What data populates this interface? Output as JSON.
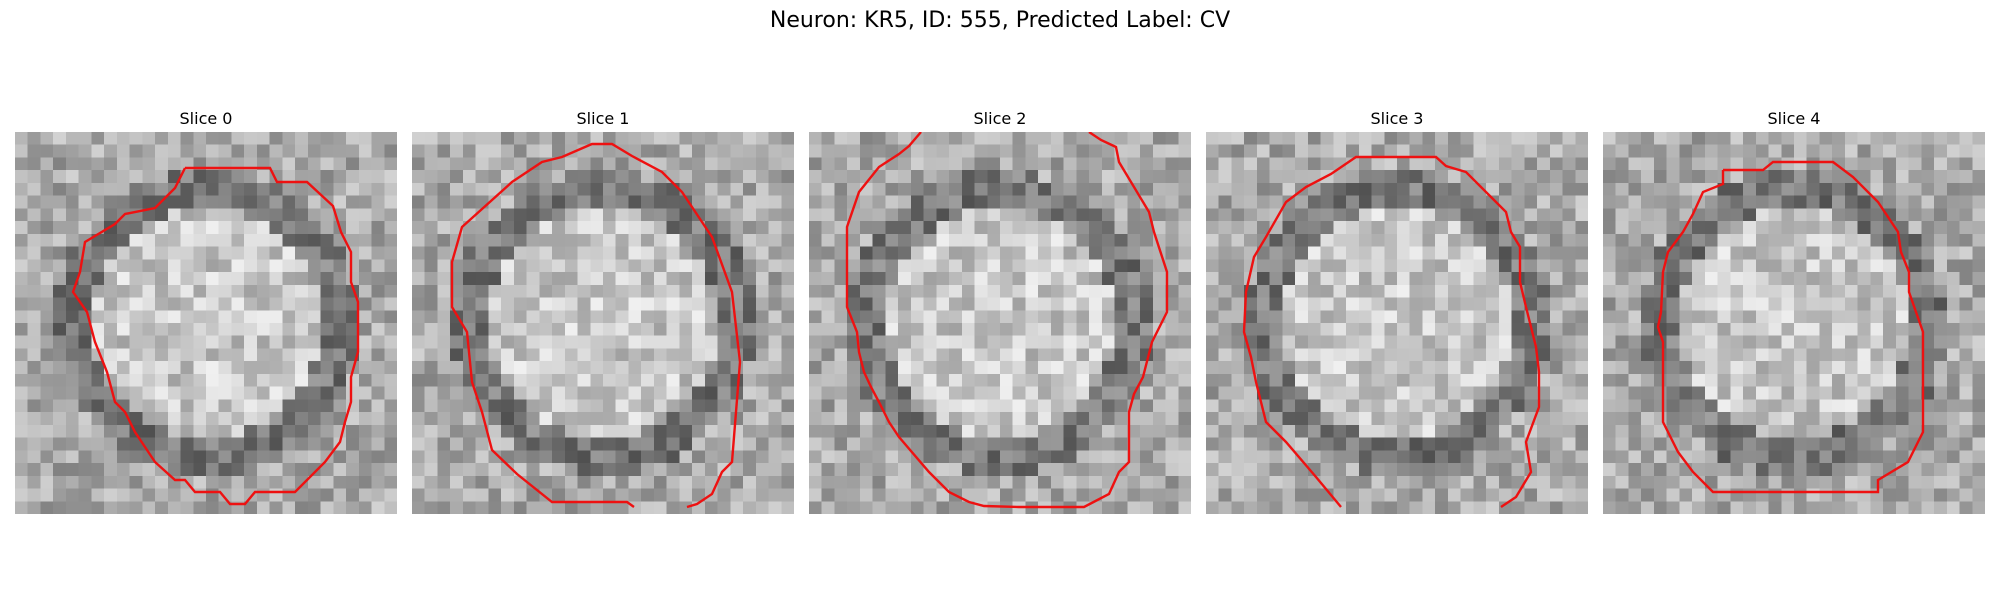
{
  "title": "Neuron: KR5, ID: 555, Predicted Label: CV",
  "panels": [
    {
      "label": "Slice 0"
    },
    {
      "label": "Slice 1"
    },
    {
      "label": "Slice 2"
    },
    {
      "label": "Slice 3"
    },
    {
      "label": "Slice 4"
    }
  ],
  "colors": {
    "contour": "#ee1111",
    "colormap": "grayscale"
  }
}
